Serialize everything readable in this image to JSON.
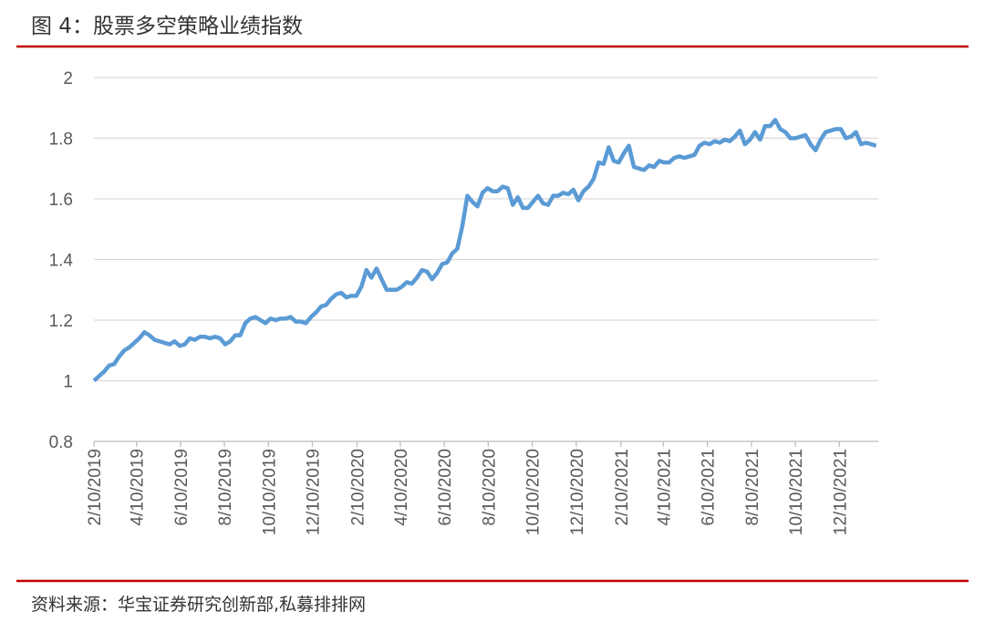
{
  "header": {
    "title": "图 4：股票多空策略业绩指数"
  },
  "chart_data": {
    "type": "line",
    "x": [
      "2019-02-10",
      "2019-02-17",
      "2019-02-24",
      "2019-03-03",
      "2019-03-10",
      "2019-03-17",
      "2019-03-24",
      "2019-03-31",
      "2019-04-07",
      "2019-04-14",
      "2019-04-21",
      "2019-04-28",
      "2019-05-05",
      "2019-05-12",
      "2019-05-19",
      "2019-05-26",
      "2019-06-02",
      "2019-06-09",
      "2019-06-16",
      "2019-06-23",
      "2019-06-30",
      "2019-07-07",
      "2019-07-14",
      "2019-07-21",
      "2019-07-28",
      "2019-08-04",
      "2019-08-11",
      "2019-08-18",
      "2019-08-25",
      "2019-09-01",
      "2019-09-08",
      "2019-09-15",
      "2019-09-22",
      "2019-09-29",
      "2019-10-06",
      "2019-10-13",
      "2019-10-20",
      "2019-10-27",
      "2019-11-03",
      "2019-11-10",
      "2019-11-17",
      "2019-11-24",
      "2019-12-01",
      "2019-12-08",
      "2019-12-15",
      "2019-12-22",
      "2019-12-29",
      "2020-01-05",
      "2020-01-12",
      "2020-01-19",
      "2020-01-26",
      "2020-02-02",
      "2020-02-09",
      "2020-02-16",
      "2020-02-23",
      "2020-03-01",
      "2020-03-08",
      "2020-03-15",
      "2020-03-22",
      "2020-03-29",
      "2020-04-05",
      "2020-04-12",
      "2020-04-19",
      "2020-04-26",
      "2020-05-03",
      "2020-05-10",
      "2020-05-17",
      "2020-05-24",
      "2020-05-31",
      "2020-06-07",
      "2020-06-14",
      "2020-06-21",
      "2020-06-28",
      "2020-07-05",
      "2020-07-12",
      "2020-07-19",
      "2020-07-26",
      "2020-08-02",
      "2020-08-09",
      "2020-08-16",
      "2020-08-23",
      "2020-08-30",
      "2020-09-06",
      "2020-09-13",
      "2020-09-20",
      "2020-09-27",
      "2020-10-04",
      "2020-10-11",
      "2020-10-18",
      "2020-10-25",
      "2020-11-01",
      "2020-11-08",
      "2020-11-15",
      "2020-11-22",
      "2020-11-29",
      "2020-12-06",
      "2020-12-13",
      "2020-12-20",
      "2020-12-27",
      "2021-01-03",
      "2021-01-10",
      "2021-01-17",
      "2021-01-24",
      "2021-01-31",
      "2021-02-07",
      "2021-02-14",
      "2021-02-21",
      "2021-02-28",
      "2021-03-07",
      "2021-03-14",
      "2021-03-21",
      "2021-03-28",
      "2021-04-04",
      "2021-04-11",
      "2021-04-18",
      "2021-04-25",
      "2021-05-02",
      "2021-05-09",
      "2021-05-16",
      "2021-05-23",
      "2021-05-30",
      "2021-06-06",
      "2021-06-13",
      "2021-06-20",
      "2021-06-27",
      "2021-07-04",
      "2021-07-11",
      "2021-07-18",
      "2021-07-25",
      "2021-08-01",
      "2021-08-08",
      "2021-08-15",
      "2021-08-22",
      "2021-08-29",
      "2021-09-05",
      "2021-09-12",
      "2021-09-19",
      "2021-09-26",
      "2021-10-03",
      "2021-10-10",
      "2021-10-17",
      "2021-10-24",
      "2021-10-31",
      "2021-11-07",
      "2021-11-14",
      "2021-11-21",
      "2021-11-28",
      "2021-12-05",
      "2021-12-12",
      "2021-12-19",
      "2021-12-26",
      "2022-01-02",
      "2022-01-09",
      "2022-01-16",
      "2022-01-23",
      "2022-01-30"
    ],
    "series": [
      {
        "color": "#5b9bd5",
        "values": [
          1.0,
          1.015,
          1.03,
          1.05,
          1.055,
          1.08,
          1.1,
          1.11,
          1.125,
          1.14,
          1.16,
          1.15,
          1.135,
          1.13,
          1.125,
          1.12,
          1.13,
          1.115,
          1.12,
          1.14,
          1.135,
          1.145,
          1.145,
          1.14,
          1.145,
          1.14,
          1.12,
          1.13,
          1.15,
          1.15,
          1.19,
          1.205,
          1.21,
          1.2,
          1.19,
          1.205,
          1.2,
          1.205,
          1.205,
          1.21,
          1.195,
          1.195,
          1.19,
          1.21,
          1.225,
          1.245,
          1.25,
          1.27,
          1.285,
          1.29,
          1.275,
          1.28,
          1.28,
          1.31,
          1.365,
          1.34,
          1.37,
          1.335,
          1.3,
          1.3,
          1.3,
          1.31,
          1.325,
          1.32,
          1.34,
          1.365,
          1.36,
          1.335,
          1.355,
          1.385,
          1.39,
          1.42,
          1.435,
          1.51,
          1.61,
          1.59,
          1.575,
          1.62,
          1.635,
          1.625,
          1.625,
          1.64,
          1.635,
          1.58,
          1.605,
          1.57,
          1.57,
          1.59,
          1.61,
          1.585,
          1.58,
          1.61,
          1.61,
          1.62,
          1.615,
          1.63,
          1.595,
          1.625,
          1.64,
          1.665,
          1.72,
          1.715,
          1.77,
          1.725,
          1.72,
          1.75,
          1.775,
          1.705,
          1.7,
          1.695,
          1.71,
          1.705,
          1.725,
          1.72,
          1.72,
          1.735,
          1.74,
          1.735,
          1.74,
          1.745,
          1.775,
          1.785,
          1.78,
          1.79,
          1.785,
          1.795,
          1.79,
          1.805,
          1.825,
          1.78,
          1.795,
          1.82,
          1.795,
          1.84,
          1.84,
          1.86,
          1.83,
          1.82,
          1.8,
          1.8,
          1.805,
          1.81,
          1.78,
          1.76,
          1.795,
          1.82,
          1.825,
          1.83,
          1.83,
          1.8,
          1.805,
          1.82,
          1.78,
          1.785,
          1.78,
          1.775
        ]
      }
    ],
    "xlim": [
      "2019-02-10",
      "2022-02-02"
    ],
    "xticks": [
      {
        "value": "2019-02-10",
        "label": "2/10/2019"
      },
      {
        "value": "2019-04-10",
        "label": "4/10/2019"
      },
      {
        "value": "2019-06-10",
        "label": "6/10/2019"
      },
      {
        "value": "2019-08-10",
        "label": "8/10/2019"
      },
      {
        "value": "2019-10-10",
        "label": "10/10/2019"
      },
      {
        "value": "2019-12-10",
        "label": "12/10/2019"
      },
      {
        "value": "2020-02-10",
        "label": "2/10/2020"
      },
      {
        "value": "2020-04-10",
        "label": "4/10/2020"
      },
      {
        "value": "2020-06-10",
        "label": "6/10/2020"
      },
      {
        "value": "2020-08-10",
        "label": "8/10/2020"
      },
      {
        "value": "2020-10-10",
        "label": "10/10/2020"
      },
      {
        "value": "2020-12-10",
        "label": "12/10/2020"
      },
      {
        "value": "2021-02-10",
        "label": "2/10/2021"
      },
      {
        "value": "2021-04-10",
        "label": "4/10/2021"
      },
      {
        "value": "2021-06-10",
        "label": "6/10/2021"
      },
      {
        "value": "2021-08-10",
        "label": "8/10/2021"
      },
      {
        "value": "2021-10-10",
        "label": "10/10/2021"
      },
      {
        "value": "2021-12-10",
        "label": "12/10/2021"
      }
    ],
    "ylim": [
      0.8,
      2
    ],
    "yticks": [
      {
        "value": 0.8,
        "label": "0.8"
      },
      {
        "value": 1,
        "label": "1"
      },
      {
        "value": 1.2,
        "label": "1.2"
      },
      {
        "value": 1.4,
        "label": "1.4"
      },
      {
        "value": 1.6,
        "label": "1.6"
      },
      {
        "value": 1.8,
        "label": "1.8"
      },
      {
        "value": 2,
        "label": "2"
      }
    ],
    "grid": true
  },
  "footer": {
    "source": "资料来源：华宝证券研究创新部,私募排排网"
  }
}
